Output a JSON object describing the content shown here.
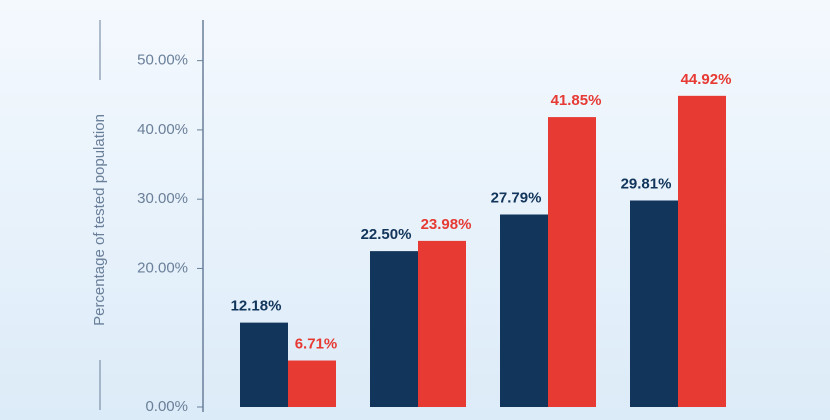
{
  "chart_data": {
    "type": "bar",
    "y_label": "Percentage of tested population",
    "categories": [
      null,
      null,
      null,
      null
    ],
    "series": [
      {
        "color": "#12355b",
        "values": [
          12.18,
          22.5,
          27.79,
          29.81
        ],
        "value_labels": [
          "12.18%",
          "22.50%",
          "27.79%",
          "29.81%"
        ]
      },
      {
        "color": "#e63a33",
        "values": [
          6.71,
          23.98,
          41.85,
          44.92
        ],
        "value_labels": [
          "6.71%",
          "23.98%",
          "41.85%",
          "44.92%"
        ]
      }
    ],
    "ylim": [
      0,
      55
    ],
    "yticks": [
      {
        "value": 0,
        "label": "0.00%"
      },
      {
        "value": 20,
        "label": "20.00%"
      },
      {
        "value": 30,
        "label": "30.00%"
      },
      {
        "value": 40,
        "label": "40.00%"
      },
      {
        "value": 50,
        "label": "50.00%"
      }
    ]
  }
}
